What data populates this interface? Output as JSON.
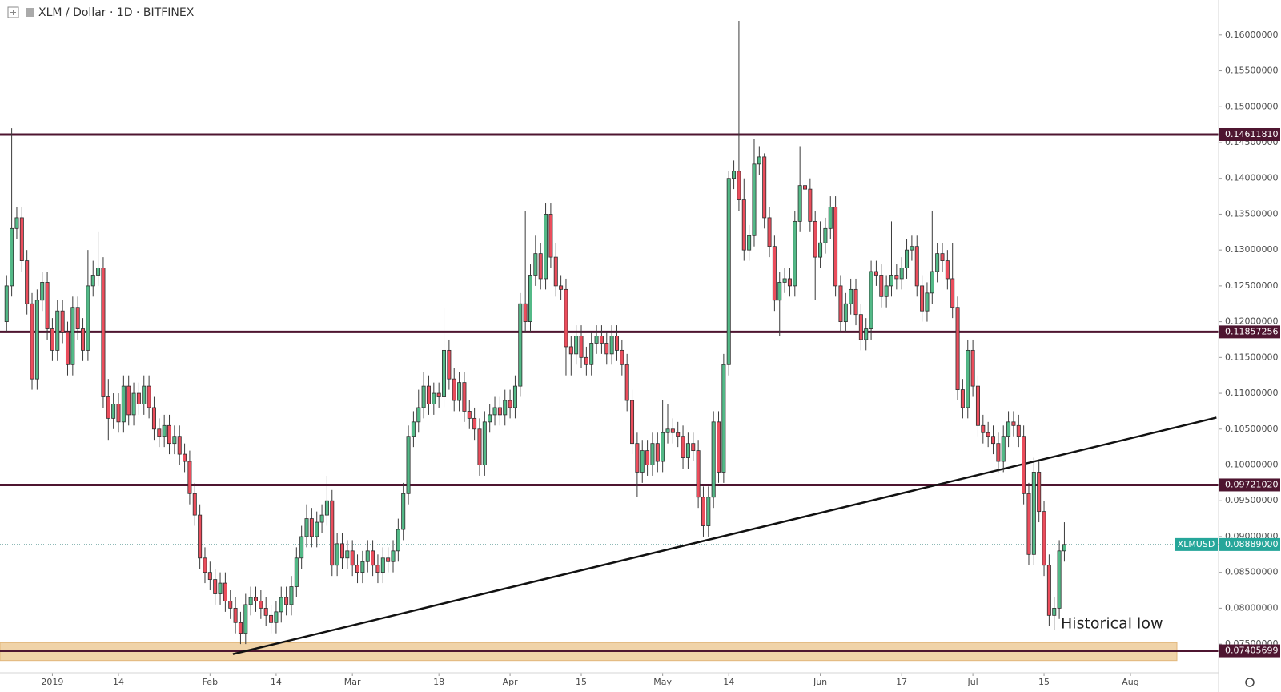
{
  "chart_data": {
    "type": "candlestick",
    "title": "XLM / Dollar · 1D · BITFINEX",
    "annotation": "Historical low",
    "up_color": "#53b987",
    "down_color": "#eb4d5c",
    "xlim": [
      -1.3,
      238
    ],
    "ylim": [
      0.0711,
      0.1649
    ],
    "xticks": [
      {
        "value": 9,
        "label": "2019"
      },
      {
        "value": 22,
        "label": "14"
      },
      {
        "value": 40,
        "label": "Feb"
      },
      {
        "value": 53,
        "label": "14"
      },
      {
        "value": 68,
        "label": "Mar"
      },
      {
        "value": 85,
        "label": "18"
      },
      {
        "value": 99,
        "label": "Apr"
      },
      {
        "value": 113,
        "label": "15"
      },
      {
        "value": 129,
        "label": "May"
      },
      {
        "value": 142,
        "label": "14"
      },
      {
        "value": 160,
        "label": "Jun"
      },
      {
        "value": 176,
        "label": "17"
      },
      {
        "value": 190,
        "label": "Jul"
      },
      {
        "value": 204,
        "label": "15"
      },
      {
        "value": 221,
        "label": "Aug"
      }
    ],
    "yticks": [
      {
        "value": 0.075,
        "label": "0.07500000"
      },
      {
        "value": 0.08,
        "label": "0.08000000"
      },
      {
        "value": 0.085,
        "label": "0.08500000"
      },
      {
        "value": 0.09,
        "label": "0.09000000"
      },
      {
        "value": 0.095,
        "label": "0.09500000"
      },
      {
        "value": 0.1,
        "label": "0.10000000"
      },
      {
        "value": 0.105,
        "label": "0.10500000"
      },
      {
        "value": 0.11,
        "label": "0.11000000"
      },
      {
        "value": 0.115,
        "label": "0.11500000"
      },
      {
        "value": 0.12,
        "label": "0.12000000"
      },
      {
        "value": 0.125,
        "label": "0.12500000"
      },
      {
        "value": 0.13,
        "label": "0.13000000"
      },
      {
        "value": 0.135,
        "label": "0.13500000"
      },
      {
        "value": 0.14,
        "label": "0.14000000"
      },
      {
        "value": 0.145,
        "label": "0.14500000"
      },
      {
        "value": 0.15,
        "label": "0.15000000"
      },
      {
        "value": 0.155,
        "label": "0.15500000"
      },
      {
        "value": 0.16,
        "label": "0.16000000"
      }
    ],
    "levels": [
      {
        "value": 0.1461181,
        "label": "0.14611810"
      },
      {
        "value": 0.11857256,
        "label": "0.11857256"
      },
      {
        "value": 0.0972102,
        "label": "0.09721020"
      },
      {
        "value": 0.07405699,
        "label": "0.07405699"
      }
    ],
    "zone": [
      0.0727,
      0.0752
    ],
    "trendline": {
      "x": [
        44.5,
        237.9
      ],
      "y": [
        0.0736,
        0.1066
      ]
    },
    "last_price": {
      "name": "XLMUSD",
      "value": 0.08889,
      "label": "0.08889000"
    },
    "open": [
      0.12,
      0.125,
      0.133,
      0.1345,
      0.1285,
      0.1225,
      0.112,
      0.123,
      0.1255,
      0.119,
      0.116,
      0.1215,
      0.1185,
      0.114,
      0.122,
      0.119,
      0.116,
      0.125,
      0.1265,
      0.1275,
      0.1095,
      0.1065,
      0.1085,
      0.106,
      0.111,
      0.107,
      0.11,
      0.1085,
      0.111,
      0.108,
      0.105,
      0.104,
      0.1055,
      0.103,
      0.104,
      0.1015,
      0.1005,
      0.096,
      0.093,
      0.087,
      0.085,
      0.084,
      0.082,
      0.0835,
      0.081,
      0.08,
      0.078,
      0.0765,
      0.0805,
      0.0815,
      0.081,
      0.08,
      0.079,
      0.078,
      0.0795,
      0.0815,
      0.0805,
      0.083,
      0.087,
      0.09,
      0.0925,
      0.09,
      0.092,
      0.093,
      0.095,
      0.086,
      0.089,
      0.087,
      0.088,
      0.086,
      0.085,
      0.0865,
      0.088,
      0.086,
      0.085,
      0.087,
      0.0865,
      0.088,
      0.091,
      0.096,
      0.104,
      0.106,
      0.108,
      0.111,
      0.1085,
      0.11,
      0.1095,
      0.116,
      0.112,
      0.109,
      0.1115,
      0.1075,
      0.1065,
      0.105,
      0.1,
      0.106,
      0.107,
      0.108,
      0.107,
      0.109,
      0.108,
      0.111,
      0.1225,
      0.12,
      0.1265,
      0.1295,
      0.126,
      0.135,
      0.129,
      0.125,
      0.1245,
      0.1165,
      0.1155,
      0.118,
      0.115,
      0.114,
      0.117,
      0.118,
      0.117,
      0.1155,
      0.118,
      0.116,
      0.114,
      0.109,
      0.103,
      0.099,
      0.102,
      0.1,
      0.103,
      0.1005,
      0.1045,
      0.105,
      0.1045,
      0.104,
      0.101,
      0.103,
      0.102,
      0.0955,
      0.0915,
      0.0955,
      0.106,
      0.099,
      0.114,
      0.14,
      0.141,
      0.137,
      0.13,
      0.132,
      0.142,
      0.143,
      0.1345,
      0.1305,
      0.123,
      0.1255,
      0.126,
      0.125,
      0.134,
      0.139,
      0.1385,
      0.134,
      0.129,
      0.131,
      0.133,
      0.136,
      0.125,
      0.12,
      0.1225,
      0.1245,
      0.121,
      0.1175,
      0.119,
      0.127,
      0.1265,
      0.1235,
      0.125,
      0.1265,
      0.126,
      0.1275,
      0.13,
      0.1305,
      0.125,
      0.1215,
      0.124,
      0.127,
      0.1295,
      0.1285,
      0.126,
      0.122,
      0.1105,
      0.108,
      0.116,
      0.111,
      0.1055,
      0.1045,
      0.104,
      0.103,
      0.1005,
      0.104,
      0.106,
      0.1055,
      0.104,
      0.096,
      0.0875,
      0.099,
      0.0935,
      0.086,
      0.079,
      0.08,
      0.088
    ],
    "high": [
      0.1265,
      0.147,
      0.136,
      0.136,
      0.13,
      0.124,
      0.1245,
      0.127,
      0.127,
      0.1205,
      0.123,
      0.123,
      0.12,
      0.1235,
      0.1235,
      0.1205,
      0.13,
      0.1285,
      0.1325,
      0.129,
      0.112,
      0.11,
      0.11,
      0.1125,
      0.1125,
      0.1115,
      0.1115,
      0.1125,
      0.1125,
      0.1095,
      0.1065,
      0.107,
      0.107,
      0.1055,
      0.1055,
      0.103,
      0.102,
      0.0975,
      0.0945,
      0.0885,
      0.0865,
      0.0855,
      0.085,
      0.085,
      0.0825,
      0.0815,
      0.0795,
      0.082,
      0.083,
      0.083,
      0.0825,
      0.0815,
      0.0805,
      0.081,
      0.083,
      0.083,
      0.0845,
      0.0885,
      0.0915,
      0.0945,
      0.094,
      0.0935,
      0.0945,
      0.0985,
      0.0965,
      0.0905,
      0.0905,
      0.0895,
      0.0895,
      0.0875,
      0.088,
      0.0895,
      0.0895,
      0.0875,
      0.0885,
      0.0885,
      0.0895,
      0.0925,
      0.0975,
      0.1055,
      0.1075,
      0.1105,
      0.113,
      0.1125,
      0.1115,
      0.1115,
      0.122,
      0.1175,
      0.1135,
      0.113,
      0.113,
      0.109,
      0.108,
      0.1065,
      0.1075,
      0.1085,
      0.1095,
      0.1095,
      0.1105,
      0.1105,
      0.1125,
      0.124,
      0.1355,
      0.128,
      0.132,
      0.131,
      0.1365,
      0.1365,
      0.131,
      0.1265,
      0.126,
      0.118,
      0.1195,
      0.1195,
      0.1165,
      0.1185,
      0.1195,
      0.1195,
      0.1185,
      0.1195,
      0.1195,
      0.1175,
      0.1155,
      0.1105,
      0.1045,
      0.1035,
      0.1035,
      0.1045,
      0.1045,
      0.109,
      0.1085,
      0.1065,
      0.106,
      0.1055,
      0.1045,
      0.1045,
      0.1035,
      0.097,
      0.097,
      0.1075,
      0.1075,
      0.1155,
      0.141,
      0.1425,
      0.162,
      0.14,
      0.1335,
      0.1455,
      0.1445,
      0.1435,
      0.136,
      0.132,
      0.127,
      0.1275,
      0.1275,
      0.1355,
      0.1445,
      0.1405,
      0.14,
      0.1355,
      0.134,
      0.1345,
      0.1375,
      0.1375,
      0.1265,
      0.124,
      0.126,
      0.126,
      0.1225,
      0.1205,
      0.1285,
      0.1285,
      0.128,
      0.1265,
      0.134,
      0.128,
      0.129,
      0.1315,
      0.132,
      0.132,
      0.1265,
      0.1255,
      0.1355,
      0.131,
      0.131,
      0.13,
      0.131,
      0.1235,
      0.112,
      0.1175,
      0.1175,
      0.1125,
      0.107,
      0.106,
      0.1055,
      0.1045,
      0.1055,
      0.1075,
      0.1075,
      0.107,
      0.1055,
      0.0975,
      0.101,
      0.1005,
      0.095,
      0.0875,
      0.0815,
      0.0895,
      0.092
    ],
    "low": [
      0.1185,
      0.1235,
      0.1315,
      0.127,
      0.121,
      0.1105,
      0.1105,
      0.1215,
      0.1175,
      0.1145,
      0.1145,
      0.117,
      0.1125,
      0.1125,
      0.1175,
      0.1145,
      0.1145,
      0.1235,
      0.125,
      0.108,
      0.1035,
      0.105,
      0.1045,
      0.1045,
      0.1055,
      0.1055,
      0.107,
      0.107,
      0.1065,
      0.1035,
      0.1025,
      0.1025,
      0.1015,
      0.1015,
      0.1,
      0.099,
      0.0945,
      0.0915,
      0.0855,
      0.0835,
      0.0825,
      0.0805,
      0.0805,
      0.0795,
      0.0785,
      0.0765,
      0.075,
      0.075,
      0.079,
      0.0795,
      0.0785,
      0.0775,
      0.0765,
      0.0765,
      0.078,
      0.079,
      0.079,
      0.0815,
      0.0855,
      0.0885,
      0.0885,
      0.0885,
      0.0905,
      0.0915,
      0.0845,
      0.0845,
      0.0855,
      0.0855,
      0.0845,
      0.0835,
      0.0835,
      0.085,
      0.0845,
      0.0835,
      0.0835,
      0.085,
      0.085,
      0.0865,
      0.0895,
      0.0945,
      0.1025,
      0.1045,
      0.1065,
      0.107,
      0.107,
      0.108,
      0.108,
      0.1105,
      0.1075,
      0.1075,
      0.106,
      0.105,
      0.1035,
      0.0985,
      0.0985,
      0.1045,
      0.1055,
      0.1055,
      0.1055,
      0.1065,
      0.1065,
      0.1095,
      0.1185,
      0.1185,
      0.125,
      0.1245,
      0.1245,
      0.1275,
      0.1235,
      0.123,
      0.1125,
      0.1125,
      0.114,
      0.1135,
      0.1125,
      0.1125,
      0.1155,
      0.1155,
      0.114,
      0.114,
      0.1145,
      0.1125,
      0.1075,
      0.1015,
      0.0955,
      0.0975,
      0.0985,
      0.0985,
      0.099,
      0.099,
      0.103,
      0.103,
      0.1025,
      0.0995,
      0.0995,
      0.1005,
      0.094,
      0.09,
      0.09,
      0.094,
      0.0975,
      0.0975,
      0.1125,
      0.1385,
      0.1355,
      0.1285,
      0.1285,
      0.1305,
      0.1405,
      0.133,
      0.129,
      0.1215,
      0.118,
      0.124,
      0.1235,
      0.1235,
      0.1325,
      0.137,
      0.1325,
      0.123,
      0.1275,
      0.1295,
      0.1315,
      0.1235,
      0.1185,
      0.1185,
      0.121,
      0.1195,
      0.116,
      0.116,
      0.1175,
      0.125,
      0.122,
      0.122,
      0.1235,
      0.1245,
      0.1245,
      0.126,
      0.1285,
      0.1235,
      0.12,
      0.12,
      0.1225,
      0.1255,
      0.127,
      0.1245,
      0.1205,
      0.109,
      0.1065,
      0.1065,
      0.1095,
      0.104,
      0.103,
      0.1025,
      0.1015,
      0.099,
      0.099,
      0.1025,
      0.104,
      0.1025,
      0.0945,
      0.086,
      0.086,
      0.092,
      0.0845,
      0.0775,
      0.077,
      0.0785,
      0.0865
    ],
    "close": [
      0.125,
      0.133,
      0.1345,
      0.1285,
      0.1225,
      0.112,
      0.123,
      0.1255,
      0.119,
      0.116,
      0.1215,
      0.1185,
      0.114,
      0.122,
      0.119,
      0.116,
      0.125,
      0.1265,
      0.1275,
      0.1095,
      0.1065,
      0.1085,
      0.106,
      0.111,
      0.107,
      0.11,
      0.1085,
      0.111,
      0.108,
      0.105,
      0.104,
      0.1055,
      0.103,
      0.104,
      0.1015,
      0.1005,
      0.096,
      0.093,
      0.087,
      0.085,
      0.084,
      0.082,
      0.0835,
      0.081,
      0.08,
      0.078,
      0.0765,
      0.0805,
      0.0815,
      0.081,
      0.08,
      0.079,
      0.078,
      0.0795,
      0.0815,
      0.0805,
      0.083,
      0.087,
      0.09,
      0.0925,
      0.09,
      0.092,
      0.093,
      0.095,
      0.086,
      0.089,
      0.087,
      0.088,
      0.086,
      0.085,
      0.0865,
      0.088,
      0.086,
      0.085,
      0.087,
      0.0865,
      0.088,
      0.091,
      0.096,
      0.104,
      0.106,
      0.108,
      0.111,
      0.1085,
      0.11,
      0.1095,
      0.116,
      0.112,
      0.109,
      0.1115,
      0.1075,
      0.1065,
      0.105,
      0.1,
      0.106,
      0.107,
      0.108,
      0.107,
      0.109,
      0.108,
      0.111,
      0.1225,
      0.12,
      0.1265,
      0.1295,
      0.126,
      0.135,
      0.129,
      0.125,
      0.1245,
      0.1165,
      0.1155,
      0.118,
      0.115,
      0.114,
      0.117,
      0.118,
      0.117,
      0.1155,
      0.118,
      0.116,
      0.114,
      0.109,
      0.103,
      0.099,
      0.102,
      0.1,
      0.103,
      0.1005,
      0.1045,
      0.105,
      0.1045,
      0.104,
      0.101,
      0.103,
      0.102,
      0.0955,
      0.0915,
      0.0955,
      0.106,
      0.099,
      0.114,
      0.14,
      0.141,
      0.137,
      0.13,
      0.132,
      0.142,
      0.143,
      0.1345,
      0.1305,
      0.123,
      0.1255,
      0.126,
      0.125,
      0.134,
      0.139,
      0.1385,
      0.134,
      0.129,
      0.131,
      0.133,
      0.136,
      0.125,
      0.12,
      0.1225,
      0.1245,
      0.121,
      0.1175,
      0.119,
      0.127,
      0.1265,
      0.1235,
      0.125,
      0.1265,
      0.126,
      0.1275,
      0.13,
      0.1305,
      0.125,
      0.1215,
      0.124,
      0.127,
      0.1295,
      0.1285,
      0.126,
      0.122,
      0.1105,
      0.108,
      0.116,
      0.111,
      0.1055,
      0.1045,
      0.104,
      0.103,
      0.1005,
      0.104,
      0.106,
      0.1055,
      0.104,
      0.096,
      0.0875,
      0.099,
      0.0935,
      0.086,
      0.079,
      0.08,
      0.088,
      0.0889
    ]
  }
}
